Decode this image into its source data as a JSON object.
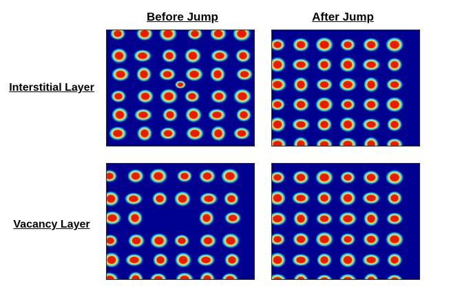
{
  "columns": {
    "before": "Before Jump",
    "after": "After Jump"
  },
  "rows": {
    "interstitial": "Interstitial Layer",
    "vacancy": "Vacancy Layer"
  },
  "colormap": {
    "background": "#00008f",
    "ring": "#00c8ff",
    "mid": "#ffe94a",
    "core": "#e81a00"
  },
  "panels": [
    {
      "id": "interstitial-before",
      "defect": "interstitial"
    },
    {
      "id": "interstitial-after",
      "defect": "none"
    },
    {
      "id": "vacancy-before",
      "defect": "vacancy"
    },
    {
      "id": "vacancy-after",
      "defect": "none"
    }
  ]
}
